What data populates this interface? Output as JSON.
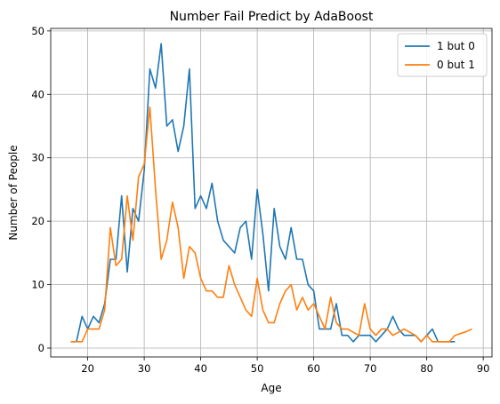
{
  "chart_data": {
    "type": "line",
    "title": "Number Fail Predict by AdaBoost",
    "xlabel": "Age",
    "ylabel": "Number of People",
    "xlim": [
      13.45,
      91.55
    ],
    "ylim": [
      -1.4,
      50.4
    ],
    "xticks": [
      20,
      30,
      40,
      50,
      60,
      70,
      80,
      90
    ],
    "yticks": [
      0,
      10,
      20,
      30,
      40,
      50
    ],
    "grid": true,
    "legend_position": "top-right",
    "series": [
      {
        "name": "1 but 0",
        "color": "#1f77b4",
        "x": [
          17,
          18,
          19,
          20,
          21,
          22,
          23,
          24,
          25,
          26,
          27,
          28,
          29,
          30,
          31,
          32,
          33,
          34,
          35,
          36,
          37,
          38,
          39,
          40,
          41,
          42,
          43,
          44,
          45,
          46,
          47,
          48,
          49,
          50,
          51,
          52,
          53,
          54,
          55,
          56,
          57,
          58,
          59,
          60,
          61,
          62,
          63,
          64,
          65,
          66,
          67,
          68,
          69,
          70,
          71,
          72,
          73,
          74,
          75,
          76,
          77,
          78,
          79,
          80,
          81,
          82,
          83,
          84,
          85
        ],
        "y": [
          1,
          1,
          5,
          3,
          5,
          4,
          7,
          14,
          14,
          24,
          12,
          22,
          20,
          28,
          44,
          41,
          48,
          35,
          36,
          31,
          35,
          44,
          22,
          24,
          22,
          26,
          20,
          17,
          16,
          15,
          19,
          20,
          14,
          25,
          18,
          9,
          22,
          16,
          14,
          19,
          14,
          14,
          10,
          9,
          3,
          3,
          3,
          7,
          2,
          2,
          1,
          2,
          2,
          2,
          1,
          2,
          3,
          5,
          3,
          2,
          2,
          2,
          1,
          2,
          3,
          1,
          1,
          1,
          1
        ]
      },
      {
        "name": "0 but 1",
        "color": "#ff7f0e",
        "x": [
          17,
          18,
          19,
          20,
          21,
          22,
          23,
          24,
          25,
          26,
          27,
          28,
          29,
          30,
          31,
          32,
          33,
          34,
          35,
          36,
          37,
          38,
          39,
          40,
          41,
          42,
          43,
          44,
          45,
          46,
          47,
          48,
          49,
          50,
          51,
          52,
          53,
          54,
          55,
          56,
          57,
          58,
          59,
          60,
          61,
          62,
          63,
          64,
          65,
          66,
          67,
          68,
          69,
          70,
          71,
          72,
          73,
          74,
          75,
          76,
          77,
          78,
          79,
          80,
          81,
          82,
          83,
          84,
          85,
          86,
          87,
          88
        ],
        "y": [
          1,
          1,
          1,
          3,
          3,
          3,
          6,
          19,
          13,
          14,
          24,
          17,
          27,
          29,
          38,
          25,
          14,
          17,
          23,
          19,
          11,
          16,
          15,
          11,
          9,
          9,
          8,
          8,
          13,
          10,
          8,
          6,
          5,
          11,
          6,
          4,
          4,
          7,
          9,
          10,
          6,
          8,
          6,
          7,
          5,
          3,
          8,
          4,
          3,
          3,
          2.5,
          2,
          7,
          3,
          2,
          3,
          3,
          2,
          2.5,
          3,
          2.5,
          2,
          1,
          2,
          1,
          1,
          1,
          1,
          2,
          2.3,
          2.6,
          3
        ]
      }
    ]
  }
}
